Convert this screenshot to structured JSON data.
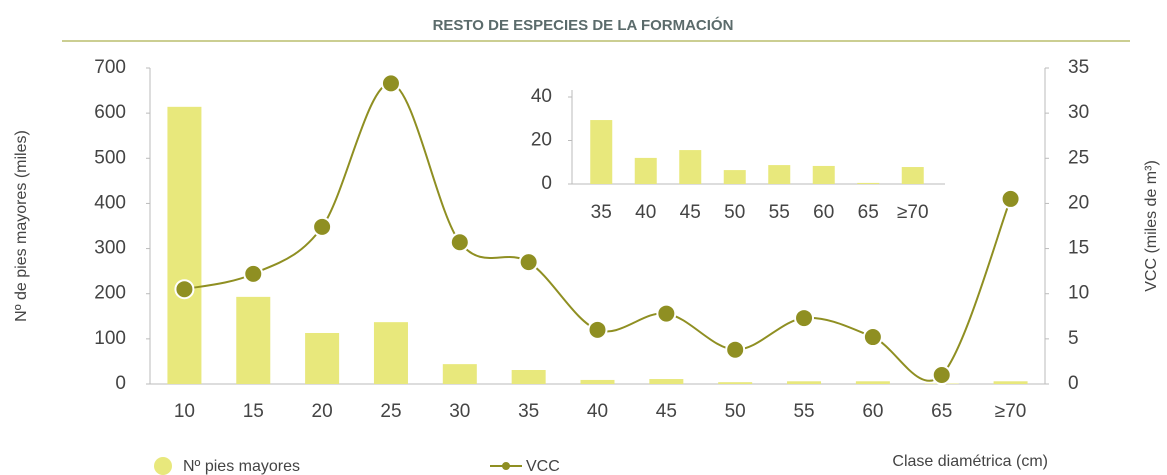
{
  "chart_data": [
    {
      "type": "combo",
      "title": "RESTO DE ESPECIES DE LA FORMACIÓN",
      "x_label": "Clase diamétrica (cm)",
      "y_label": "Nº de pies mayores (miles)",
      "y2_label": "VCC (miles de m³)",
      "categories": [
        "10",
        "15",
        "20",
        "25",
        "30",
        "35",
        "40",
        "45",
        "50",
        "55",
        "60",
        "65",
        "≥70"
      ],
      "series": [
        {
          "name": "Nº pies mayores",
          "type": "bar",
          "color": "#e8e87c",
          "values": [
            614,
            193,
            113,
            137,
            44,
            31,
            9,
            11,
            4,
            6,
            6,
            1,
            6
          ]
        },
        {
          "name": "VCC",
          "type": "line",
          "axis": "y2",
          "color": "#8f8f22",
          "values": [
            10.5,
            12.2,
            17.4,
            33.3,
            15.7,
            13.5,
            6.0,
            7.8,
            3.8,
            7.3,
            5.2,
            1.0,
            20.5
          ]
        }
      ],
      "ylim": [
        0,
        700
      ],
      "yticks": [
        0,
        100,
        200,
        300,
        400,
        500,
        600,
        700
      ],
      "y2lim": [
        0,
        35
      ],
      "y2ticks": [
        0,
        5,
        10,
        15,
        20,
        25,
        30,
        35
      ]
    },
    {
      "type": "bar",
      "categories": [
        "35",
        "40",
        "45",
        "50",
        "55",
        "60",
        "65",
        "≥70"
      ],
      "values": [
        29.4,
        12,
        15.6,
        6.4,
        8.7,
        8.3,
        0.5,
        7.8
      ],
      "color": "#e8e87c",
      "ylim": [
        0,
        40
      ],
      "yticks": [
        0,
        20,
        40
      ]
    }
  ]
}
